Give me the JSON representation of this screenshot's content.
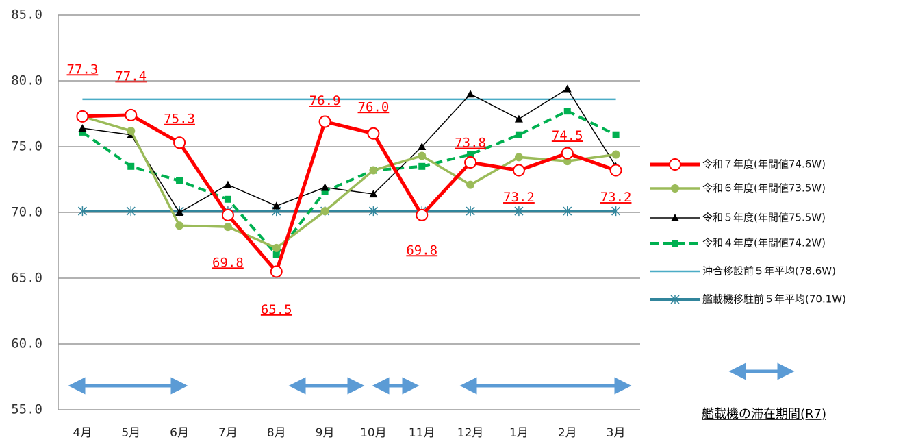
{
  "chart_data": {
    "type": "line",
    "categories": [
      "4月",
      "5月",
      "6月",
      "7月",
      "8月",
      "9月",
      "10月",
      "11月",
      "12月",
      "1月",
      "2月",
      "3月"
    ],
    "ylim": [
      55,
      85
    ],
    "yticks": [
      {
        "value": 55,
        "label": "55.0"
      },
      {
        "value": 60,
        "label": "60.0"
      },
      {
        "value": 65,
        "label": "65.0"
      },
      {
        "value": 70,
        "label": "70.0"
      },
      {
        "value": 75,
        "label": "75.0"
      },
      {
        "value": 80,
        "label": "80.0"
      },
      {
        "value": 85,
        "label": "85.0"
      }
    ],
    "grid": true,
    "series": [
      {
        "name": "令和７年度(年間値74.6W)",
        "color": "#ff0000",
        "marker": "circle-open",
        "values": [
          77.3,
          77.4,
          75.3,
          69.8,
          65.5,
          76.9,
          76.0,
          69.8,
          73.8,
          73.2,
          74.5,
          73.2
        ],
        "value_labels": [
          "77.3",
          "77.4",
          "75.3",
          "69.8",
          "65.5",
          "76.9",
          "76.0",
          "69.8",
          "73.8",
          "73.2",
          "74.5",
          "73.2"
        ]
      },
      {
        "name": "令和６年度(年間値73.5W)",
        "color": "#9bbb59",
        "marker": "circle",
        "values": [
          77.3,
          76.2,
          69.0,
          68.9,
          67.3,
          70.1,
          73.2,
          74.3,
          72.1,
          74.2,
          73.9,
          74.4
        ]
      },
      {
        "name": "令和５年度(年間値75.5W)",
        "color": "#000000",
        "marker": "triangle",
        "values": [
          76.4,
          75.9,
          70.0,
          72.1,
          70.5,
          71.9,
          71.4,
          75.0,
          79.0,
          77.1,
          79.4,
          73.5
        ]
      },
      {
        "name": "令和４年度(年間値74.2W)",
        "color": "#00b050",
        "marker": "square",
        "dashed": true,
        "values": [
          76.1,
          73.5,
          72.4,
          71.0,
          66.8,
          71.6,
          73.2,
          73.5,
          74.4,
          75.9,
          77.7,
          75.9
        ]
      },
      {
        "name": "沖合移設前５年平均(78.6W)",
        "color": "#4bacc6",
        "marker": "none",
        "values": [
          78.6,
          78.6,
          78.6,
          78.6,
          78.6,
          78.6,
          78.6,
          78.6,
          78.6,
          78.6,
          78.6,
          78.6
        ]
      },
      {
        "name": "艦載機移駐前５年平均(70.1W)",
        "color": "#31859c",
        "marker": "asterisk",
        "values": [
          70.1,
          70.1,
          70.1,
          70.1,
          70.1,
          70.1,
          70.1,
          70.1,
          70.1,
          70.1,
          70.1,
          70.1
        ]
      }
    ],
    "stay_label": "艦載機の滞在期間(R7)"
  }
}
